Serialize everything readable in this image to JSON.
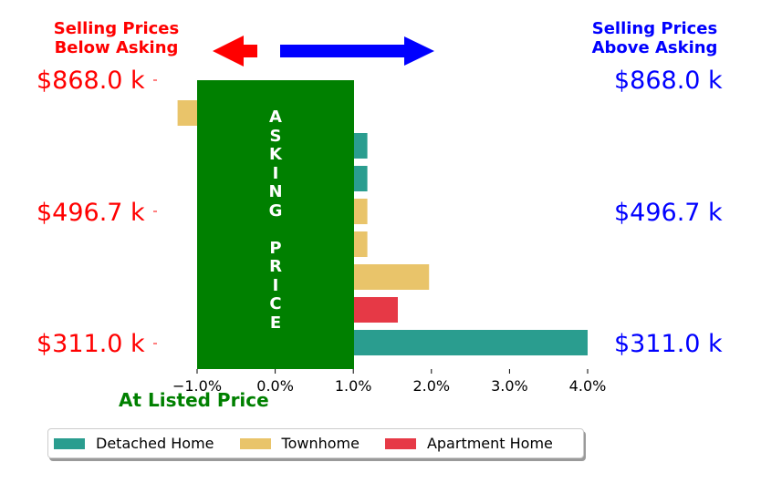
{
  "header": {
    "left_line1": "Selling Prices",
    "left_line2": "Below Asking",
    "right_line1": "Selling Prices",
    "right_line2": "Above Asking",
    "left_color": "#ff0000",
    "right_color": "#0000ff"
  },
  "price_labels": {
    "top": "$868.0 k",
    "middle": "$496.7 k",
    "bottom": "$311.0 k"
  },
  "asking_box": {
    "letters": [
      "A",
      "S",
      "K",
      "I",
      "N",
      "G",
      "",
      "P",
      "R",
      "I",
      "C",
      "E"
    ],
    "color": "#008000"
  },
  "listed_label": "At Listed Price",
  "colors": {
    "detached": "#2a9d8f",
    "townhome": "#e9c46a",
    "apartment": "#e63946"
  },
  "chart_data": {
    "type": "bar",
    "orientation": "horizontal",
    "xlabel": "",
    "ylabel": "",
    "xlim": [
      -1.0,
      4.0
    ],
    "x_ticks": [
      "−1.0%",
      "0.0%",
      "1.0%",
      "2.0%",
      "3.0%",
      "4.0%"
    ],
    "legend_position": "bottom",
    "series": [
      {
        "name": "Detached Home",
        "color": "#2a9d8f"
      },
      {
        "name": "Townhome",
        "color": "#e9c46a"
      },
      {
        "name": "Apartment Home",
        "color": "#e63946"
      }
    ],
    "bars": [
      {
        "series": "Townhome",
        "value": -1.25
      },
      {
        "series": "Detached Home",
        "value": 1.18
      },
      {
        "series": "Detached Home",
        "value": 1.18
      },
      {
        "series": "Townhome",
        "value": 1.18
      },
      {
        "series": "Townhome",
        "value": 1.18
      },
      {
        "series": "Townhome",
        "value": 1.97
      },
      {
        "series": "Apartment Home",
        "value": 1.57
      },
      {
        "series": "Detached Home",
        "value": 4.0
      }
    ]
  }
}
